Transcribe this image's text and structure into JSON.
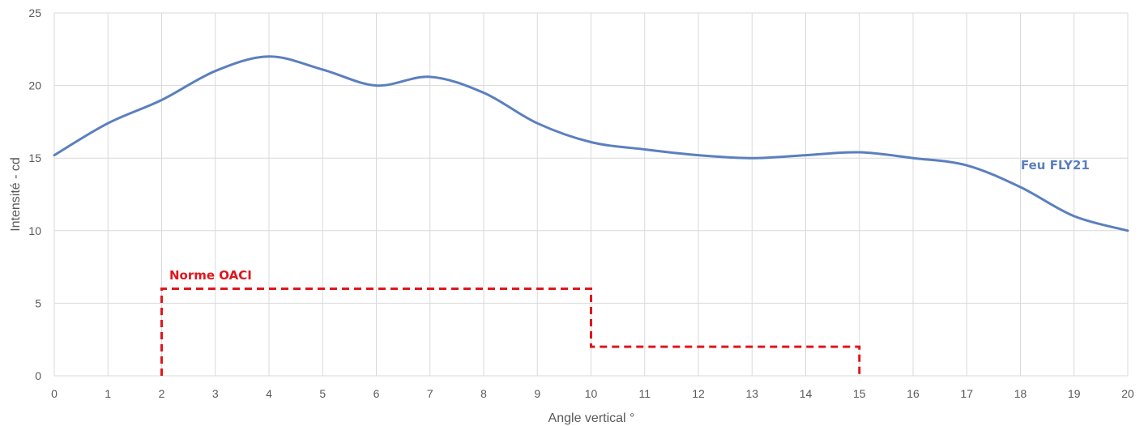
{
  "chart_data": {
    "type": "line",
    "xlabel": "Angle vertical °",
    "ylabel": "Intensité - cd",
    "xlim": [
      0,
      20
    ],
    "ylim": [
      0,
      25
    ],
    "x_ticks": [
      "0",
      "1",
      "2",
      "3",
      "4",
      "5",
      "6",
      "7",
      "8",
      "9",
      "10",
      "11",
      "12",
      "13",
      "14",
      "15",
      "16",
      "17",
      "18",
      "19",
      "20"
    ],
    "y_ticks": [
      "0",
      "5",
      "10",
      "15",
      "20",
      "25"
    ],
    "grid": true,
    "series": [
      {
        "name": "Feu FLY21",
        "color": "#5b7fbf",
        "style": "solid-smooth",
        "x": [
          0,
          1,
          2,
          3,
          4,
          5,
          6,
          7,
          8,
          9,
          10,
          11,
          12,
          13,
          14,
          15,
          16,
          17,
          18,
          19,
          20
        ],
        "y": [
          15.2,
          17.4,
          19.0,
          21.0,
          22.0,
          21.1,
          20.0,
          20.6,
          19.5,
          17.4,
          16.1,
          15.6,
          15.2,
          15.0,
          15.2,
          15.4,
          15.0,
          14.5,
          13.0,
          11.0,
          10.0
        ]
      },
      {
        "name": "Norme OACI",
        "color": "#e0161c",
        "style": "dashed-step",
        "x": [
          2,
          2,
          10,
          10,
          15,
          15
        ],
        "y": [
          0,
          6,
          6,
          2,
          2,
          0
        ]
      }
    ]
  }
}
